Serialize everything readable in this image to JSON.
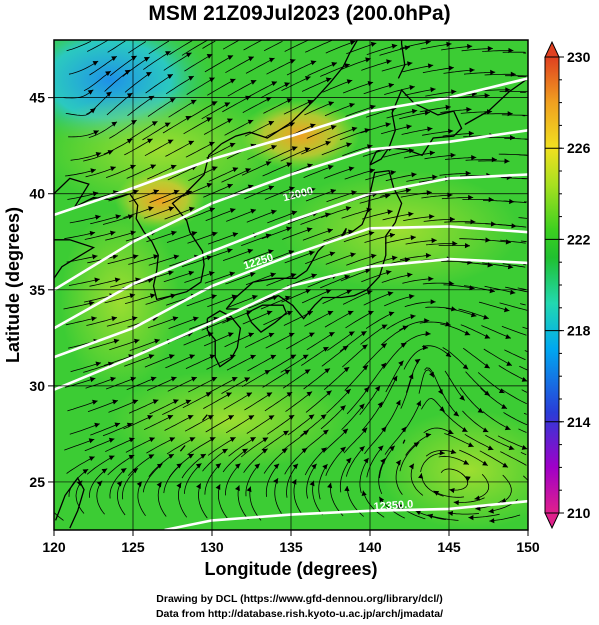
{
  "title": "MSM 21Z09Jul2023 (200.0hPa)",
  "axes": {
    "xlabel": "Longitude (degrees)",
    "ylabel": "Latitude  (degrees)",
    "xlim": [
      120,
      150
    ],
    "ylim": [
      22.5,
      48
    ],
    "xticks": [
      "120",
      "125",
      "130",
      "135",
      "140",
      "145",
      "150"
    ],
    "yticks": [
      "25",
      "30",
      "35",
      "40",
      "45"
    ]
  },
  "colorbar": {
    "min": 210,
    "max": 230,
    "tick_labels": [
      "230",
      "226",
      "222",
      "218",
      "214",
      "210"
    ],
    "colors": [
      "#e0208c",
      "#a000c8",
      "#2a3cd8",
      "#00a8f0",
      "#22d8b0",
      "#20c030",
      "#3cd020",
      "#a8e020",
      "#f0e020",
      "#f0a020",
      "#e04020"
    ]
  },
  "contours": {
    "labels": [
      "12000",
      "12250",
      "12350.0"
    ],
    "color": "#ffffff"
  },
  "map": {
    "field_colors": {
      "background": "#3ccc34",
      "warm": "#f0a020",
      "yellow_green": "#a8e030",
      "cyan": "#28c8d8",
      "blue": "#2090e8"
    }
  },
  "credits": {
    "line1": "Drawing by DCL (https://www.gfd-dennou.org/library/dcl/)",
    "line2": "Data from http://database.rish.kyoto-u.ac.jp/arch/jmadata/"
  }
}
